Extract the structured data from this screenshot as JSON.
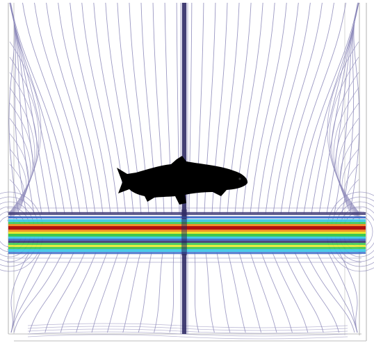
{
  "figure": {
    "subject": "fish-silhouette",
    "colors": {
      "background": "#ffffff",
      "field_line": "#8a86b8",
      "field_line_dark": "#3a3470",
      "tank_outline": "#bdbdbd",
      "fish": "#000000",
      "band_red": "#b01010",
      "band_orange": "#f0902a",
      "band_yellow": "#e8e830",
      "band_green": "#3cc850",
      "band_cyan": "#38c8e8",
      "band_blue": "#3868c8",
      "vertical_beam": "#2a2660"
    }
  }
}
